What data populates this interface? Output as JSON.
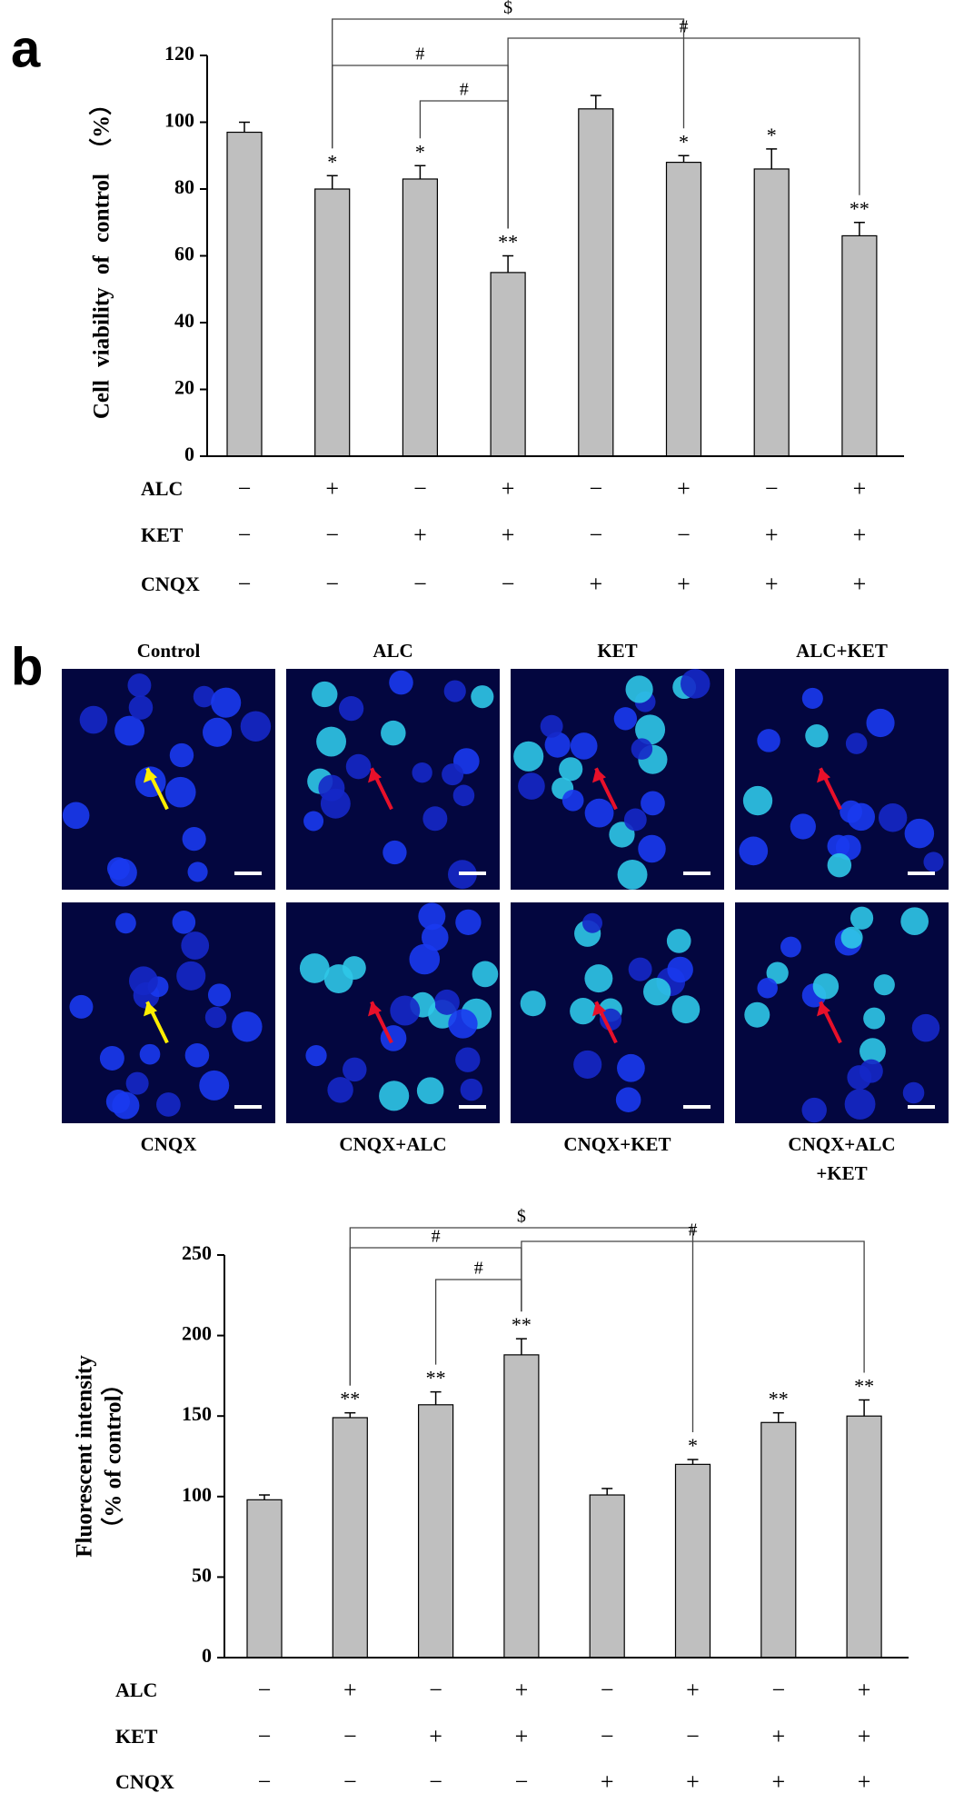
{
  "panel_labels": [
    "a",
    "b"
  ],
  "micrographs": [
    {
      "label": "Control"
    },
    {
      "label": "ALC"
    },
    {
      "label": "KET"
    },
    {
      "label": "ALC+KET"
    },
    {
      "label": "CNQX"
    },
    {
      "label": "CNQX+ALC"
    },
    {
      "label": "CNQX+KET"
    },
    {
      "label": [
        "CNQX+ALC",
        "+KET"
      ]
    }
  ],
  "chart_data": [
    {
      "type": "bar",
      "y_label": "Cell viability of control （%）",
      "color": "#bfbfbf",
      "values": [
        97,
        80,
        83,
        55,
        104,
        88,
        86,
        66
      ],
      "errors": [
        3,
        4,
        4,
        5,
        4,
        2,
        6,
        4
      ],
      "annotations": [
        null,
        "*",
        "*",
        "**",
        null,
        "*",
        "*",
        "**"
      ],
      "ylim": [
        0,
        120
      ],
      "yticks": [
        0,
        20,
        40,
        60,
        80,
        100,
        120
      ],
      "conditions": [
        {
          "name": "ALC",
          "signs": [
            "−",
            "+",
            "−",
            "+",
            "−",
            "+",
            "−",
            "+"
          ]
        },
        {
          "name": "KET",
          "signs": [
            "−",
            "−",
            "+",
            "+",
            "−",
            "−",
            "+",
            "+"
          ]
        },
        {
          "name": "CNQX",
          "signs": [
            "−",
            "−",
            "−",
            "−",
            "+",
            "+",
            "+",
            "+"
          ]
        }
      ],
      "comparisons": [
        {
          "bars": [
            1,
            5
          ],
          "label": "$"
        },
        {
          "bars": [
            1,
            3
          ],
          "label": "#"
        },
        {
          "bars": [
            2,
            3
          ],
          "label": "#"
        },
        {
          "bars": [
            3,
            7
          ],
          "label": "#"
        }
      ]
    },
    {
      "type": "bar",
      "y_label": [
        "Fluorescent intensity",
        "（% of control）"
      ],
      "color": "#bfbfbf",
      "values": [
        98,
        149,
        157,
        188,
        101,
        120,
        146,
        150
      ],
      "errors": [
        3,
        3,
        8,
        10,
        4,
        3,
        6,
        10
      ],
      "annotations": [
        null,
        "**",
        "**",
        "**",
        null,
        "*",
        "**",
        "**"
      ],
      "ylim": [
        0,
        250
      ],
      "yticks": [
        0,
        50,
        100,
        150,
        200,
        250
      ],
      "conditions": [
        {
          "name": "ALC",
          "signs": [
            "−",
            "+",
            "−",
            "+",
            "−",
            "+",
            "−",
            "+"
          ]
        },
        {
          "name": "KET",
          "signs": [
            "−",
            "−",
            "+",
            "+",
            "−",
            "−",
            "+",
            "+"
          ]
        },
        {
          "name": "CNQX",
          "signs": [
            "−",
            "−",
            "−",
            "−",
            "+",
            "+",
            "+",
            "+"
          ]
        }
      ],
      "comparisons": [
        {
          "bars": [
            1,
            5
          ],
          "label": "$"
        },
        {
          "bars": [
            1,
            3
          ],
          "label": "#"
        },
        {
          "bars": [
            2,
            3
          ],
          "label": "#"
        },
        {
          "bars": [
            3,
            7
          ],
          "label": "#"
        }
      ]
    }
  ]
}
